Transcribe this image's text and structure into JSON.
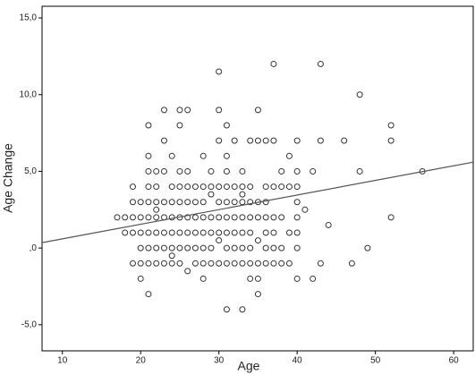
{
  "chart_data": {
    "type": "scatter",
    "x_label": "Age",
    "y_label": "Age Change",
    "x": [
      17,
      18,
      18,
      19,
      19,
      19,
      19,
      19,
      20,
      20,
      20,
      20,
      20,
      20,
      21,
      21,
      21,
      21,
      21,
      21,
      21,
      21,
      21,
      21,
      22,
      22,
      22,
      22,
      22,
      22,
      22,
      22,
      23,
      23,
      23,
      23,
      23,
      23,
      23,
      23,
      24,
      24,
      24,
      24,
      24,
      24,
      24,
      24,
      25,
      25,
      25,
      25,
      25,
      25,
      25,
      25,
      25,
      26,
      26,
      26,
      26,
      26,
      26,
      26,
      26,
      27,
      27,
      27,
      27,
      27,
      27,
      28,
      28,
      28,
      28,
      28,
      28,
      28,
      28,
      29,
      29,
      29,
      29,
      29,
      29,
      29,
      30,
      30,
      30,
      30,
      30,
      30,
      30,
      30,
      30,
      31,
      31,
      31,
      31,
      31,
      31,
      31,
      31,
      31,
      31,
      32,
      32,
      32,
      32,
      32,
      32,
      32,
      33,
      33,
      33,
      33,
      33,
      33,
      33,
      33,
      33,
      34,
      34,
      34,
      34,
      34,
      34,
      34,
      34,
      35,
      35,
      35,
      35,
      35,
      35,
      35,
      35,
      36,
      36,
      36,
      36,
      36,
      36,
      36,
      37,
      37,
      37,
      37,
      37,
      37,
      37,
      38,
      38,
      38,
      38,
      38,
      39,
      39,
      39,
      39,
      40,
      40,
      40,
      40,
      40,
      40,
      40,
      40,
      41,
      42,
      42,
      43,
      43,
      43,
      44,
      46,
      47,
      48,
      48,
      49,
      52,
      52,
      52,
      56
    ],
    "values": [
      2,
      2,
      1,
      4,
      3,
      2,
      1,
      -1,
      3,
      2,
      1,
      0,
      -1,
      -2,
      8,
      6,
      5,
      4,
      3,
      2,
      1,
      0,
      -1,
      -3,
      5,
      4,
      3,
      2,
      1,
      0,
      -1,
      2.5,
      9,
      7,
      5,
      3,
      2,
      1,
      0,
      -1,
      6,
      4,
      3,
      2,
      1,
      0,
      -1,
      -0.5,
      9,
      8,
      5,
      4,
      3,
      2,
      1,
      0,
      -1,
      9,
      5,
      4,
      3,
      2,
      1,
      0,
      -1.5,
      4,
      3,
      2,
      1,
      0,
      -1,
      6,
      4,
      3,
      2,
      1,
      0,
      -1,
      -2,
      5,
      4,
      3.5,
      2,
      1,
      0,
      -1,
      11.5,
      9,
      7,
      4,
      3,
      2,
      1,
      0.5,
      -1,
      8,
      6,
      5,
      4,
      3,
      2,
      1,
      0,
      -1,
      -4,
      7,
      4,
      3,
      2,
      1,
      0,
      -1,
      5,
      4,
      3,
      2,
      1,
      0,
      -1,
      -4,
      3.5,
      7,
      4,
      3,
      2,
      1,
      0,
      -1,
      -2,
      9,
      7,
      3,
      2,
      0.5,
      -1,
      -2,
      -3,
      7,
      4,
      3,
      2,
      1,
      0,
      -1,
      12,
      7,
      4,
      2,
      1,
      0,
      -1,
      5,
      4,
      2,
      0,
      -1,
      6,
      4,
      1,
      -1,
      7,
      5,
      4,
      3,
      2,
      1,
      0,
      -2,
      2.5,
      5,
      -2,
      12,
      7,
      -1,
      1.5,
      7,
      -1,
      10,
      5,
      0,
      8,
      7,
      2,
      5
    ],
    "color": "#333333",
    "fit_line": {
      "x": [
        7.4,
        62.5
      ],
      "y": [
        0.35,
        5.6
      ],
      "color": "#555555"
    },
    "xlim": [
      7.4,
      62.5
    ],
    "ylim": [
      -6.7,
      15.76
    ],
    "xticks": [
      10,
      20,
      30,
      40,
      50,
      60
    ],
    "yticks": [
      {
        "value": -5,
        "label": "-5,0"
      },
      {
        "value": 0,
        "label": ",0"
      },
      {
        "value": 5,
        "label": "5,0"
      },
      {
        "value": 10,
        "label": "10,0"
      },
      {
        "value": 15,
        "label": "15,0"
      }
    ]
  }
}
